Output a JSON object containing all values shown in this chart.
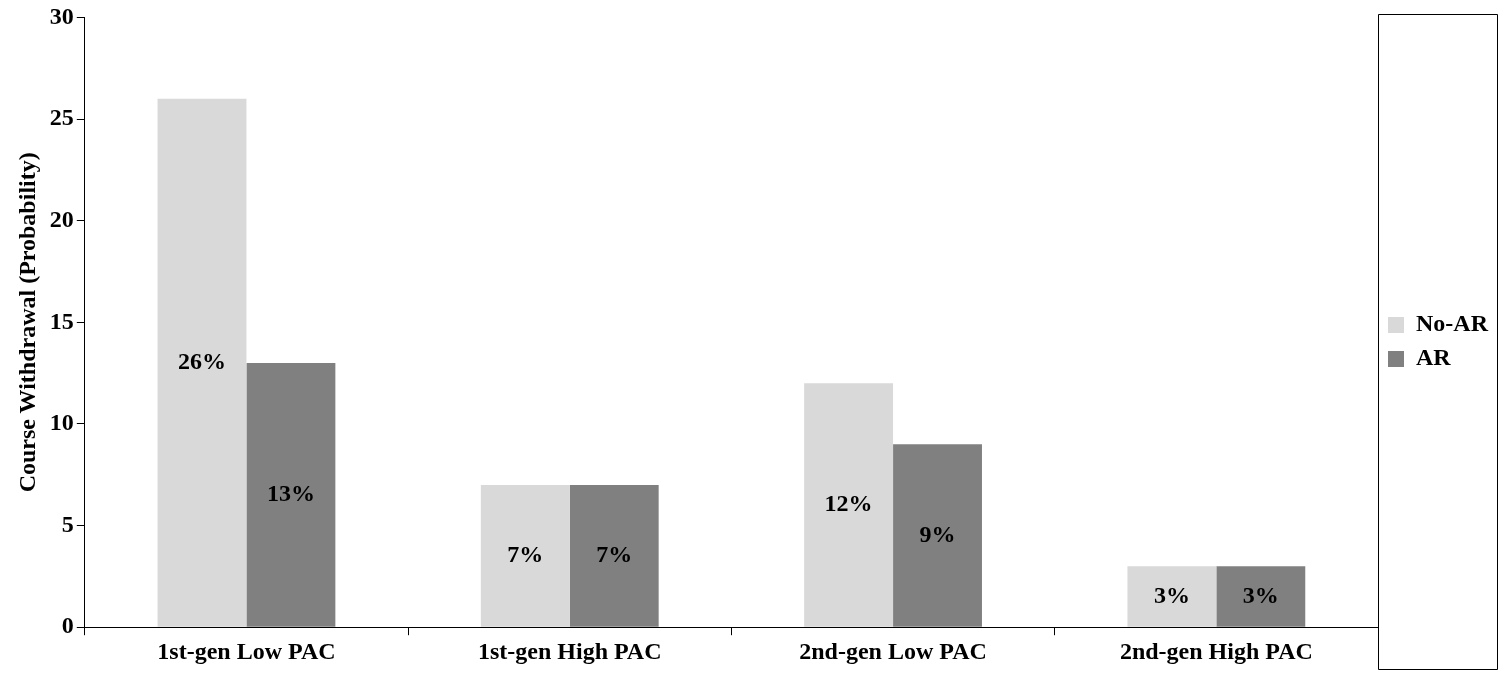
{
  "chart_data": {
    "type": "bar",
    "ylabel": "Course Withdrawal (Probability)",
    "categories": [
      "1st-gen Low PAC",
      "1st-gen High PAC",
      "2nd-gen Low PAC",
      "2nd-gen High PAC"
    ],
    "series": [
      {
        "name": "No-AR",
        "color": "#d9d9d9",
        "values": [
          26,
          7,
          12,
          3
        ],
        "value_labels": [
          "26%",
          "7%",
          "12%",
          "3%"
        ]
      },
      {
        "name": "AR",
        "color": "#808080",
        "values": [
          13,
          7,
          9,
          3
        ],
        "value_labels": [
          "13%",
          "7%",
          "9%",
          "3%"
        ]
      }
    ],
    "ylim": [
      0,
      30
    ],
    "yticks": [
      0,
      5,
      10,
      15,
      20,
      25,
      30
    ],
    "grid": false,
    "legend": "right"
  }
}
